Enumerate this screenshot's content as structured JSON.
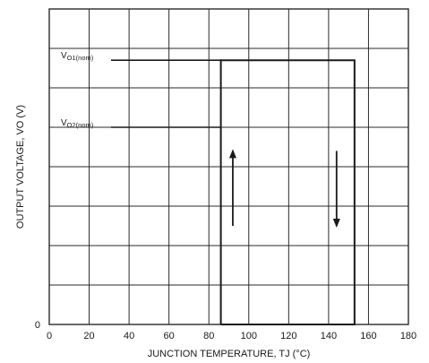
{
  "chart_data": {
    "type": "line",
    "title": "",
    "xlabel": "JUNCTION TEMPERATURE, TJ (°C)",
    "ylabel": "OUTPUT VOLTAGE, VO (V)",
    "xlim": [
      0,
      180
    ],
    "ylim": [
      0,
      8
    ],
    "grid": true,
    "x_ticks": [
      "0",
      "20",
      "40",
      "60",
      "80",
      "100",
      "120",
      "140",
      "160",
      "180"
    ],
    "y_ticks": [
      "0"
    ],
    "levels": [
      {
        "label": "VO1(nom)",
        "value": 6.7
      },
      {
        "label": "VO2(nom)",
        "value": 5.0
      }
    ],
    "series": [
      {
        "values": [
          {
            "x": 86,
            "y": 0
          },
          {
            "x": 86,
            "y": 6.7
          },
          {
            "x": 153,
            "y": 6.7
          },
          {
            "x": 153,
            "y": 0
          },
          {
            "x": 86,
            "y": 0
          }
        ]
      }
    ],
    "annotations": [
      {
        "type": "arrow",
        "direction": "up",
        "x": 92,
        "y_from": 2.5,
        "y_to": 4.4
      },
      {
        "type": "arrow",
        "direction": "down",
        "x": 144,
        "y_from": 4.4,
        "y_to": 2.5
      }
    ]
  }
}
